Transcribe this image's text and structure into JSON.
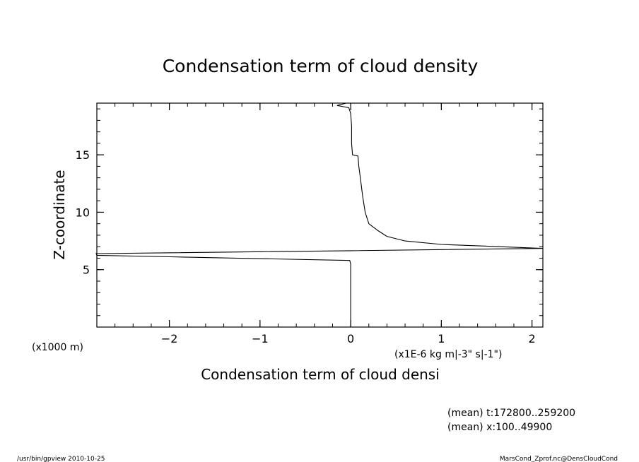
{
  "chart_data": {
    "type": "line",
    "title": "Condensation term of cloud density",
    "xlabel": "Condensation term of cloud densi",
    "ylabel": "Z-coordinate",
    "x_units": "(x1E-6 kg m|-3\" s|-1\")",
    "y_units": "(x1000 m)",
    "xlim": [
      -2.8,
      2.12
    ],
    "ylim": [
      0,
      19.5
    ],
    "x_ticks": [
      -2,
      -1,
      0,
      1,
      2
    ],
    "x_tick_labels": [
      "−2",
      "−1",
      "0",
      "1",
      "2"
    ],
    "y_ticks": [
      5,
      10,
      15
    ],
    "y_tick_labels": [
      "5",
      "10",
      "15"
    ],
    "grid": false,
    "legend": "none",
    "series": [
      {
        "points": [
          [
            0.0,
            0.0
          ],
          [
            0.0,
            2.0
          ],
          [
            0.0,
            4.0
          ],
          [
            0.0,
            5.5
          ],
          [
            -0.01,
            5.8
          ],
          [
            -2.0,
            6.12
          ],
          [
            -2.8,
            6.25
          ],
          [
            -2.9,
            6.4
          ],
          [
            0.0,
            6.65
          ],
          [
            2.12,
            6.85
          ],
          [
            1.5,
            7.05
          ],
          [
            1.0,
            7.2
          ],
          [
            0.6,
            7.5
          ],
          [
            0.4,
            7.9
          ],
          [
            0.3,
            8.4
          ],
          [
            0.2,
            9.0
          ],
          [
            0.16,
            10.0
          ],
          [
            0.13,
            11.5
          ],
          [
            0.11,
            12.8
          ],
          [
            0.09,
            14.0
          ],
          [
            0.08,
            14.9
          ],
          [
            0.02,
            15.0
          ],
          [
            0.01,
            16.0
          ],
          [
            0.01,
            17.5
          ],
          [
            0.0,
            18.6
          ],
          [
            -0.02,
            19.1
          ],
          [
            -0.15,
            19.3
          ],
          [
            -0.05,
            19.5
          ]
        ]
      }
    ]
  },
  "annotations": {
    "mean_t": "(mean) t:172800..259200",
    "mean_x": "(mean) x:100..49900"
  },
  "footer": {
    "left": "/usr/bin/gpview   2010-10-25",
    "right": "MarsCond_Zprof.nc@DensCloudCond"
  }
}
